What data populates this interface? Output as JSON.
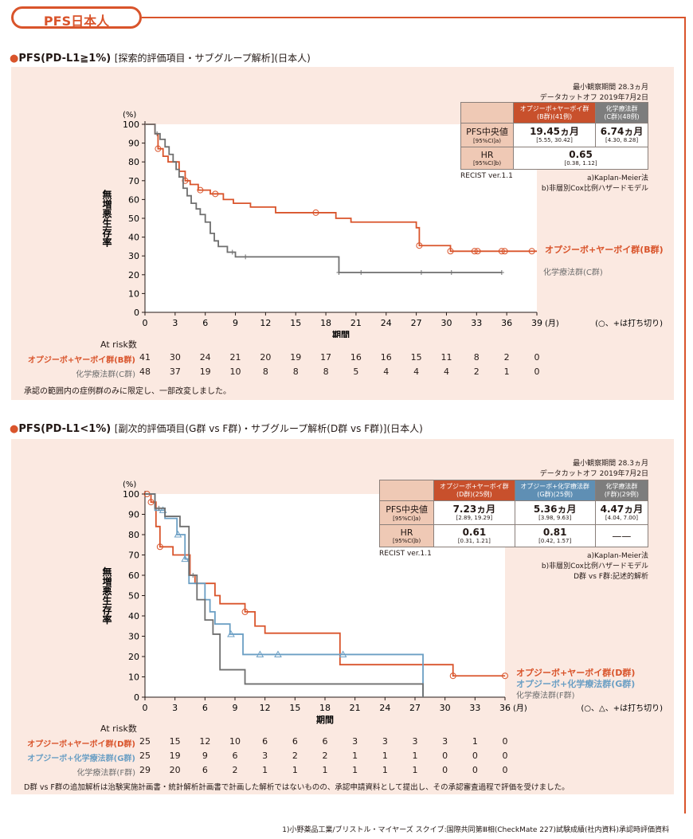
{
  "header": {
    "tab_label": "PFS日本人"
  },
  "colors": {
    "accent": "#d9542b",
    "red": "#d9542b",
    "gray": "#6f6f6f",
    "blue": "#6b9fc4",
    "panel": "#fbe9e1"
  },
  "section1": {
    "title_main": "PFS(PD-L1≧1%)",
    "title_sub": "[探索的評価項目・サブグループ解析](日本人)",
    "note_min_obs": "最小観察期間 28.3ヵ月",
    "note_cutoff": "データカットオフ 2019年7月2日",
    "table": {
      "col_b": "オプジーボ+ヤーボイ群",
      "col_b2": "(B群)(41例)",
      "col_c": "化学療法群",
      "col_c2": "(C群)(48例)",
      "row1_label": "PFS中央値",
      "row1_sub": "[95%CI]a)",
      "b_median": "19.45ヵ月",
      "b_ci": "[5.55, 30.42]",
      "c_median": "6.74ヵ月",
      "c_ci": "[4.30, 8.28]",
      "row2_label": "HR",
      "row2_sub": "[95%CI]b)",
      "hr": "0.65",
      "hr_ci": "[0.38, 1.12]"
    },
    "recist": "RECIST ver.1.1",
    "footnote_a": "a)Kaplan-Meier法",
    "footnote_b": "b)非層別Cox比例ハザードモデル",
    "ylabel": "無増悪生存率",
    "yunit": "(%)",
    "xlabel": "期間",
    "xunit": "(月)",
    "censor_note": "(○、+は打ち切り)",
    "legend_b": "オプジーボ+ヤーボイ群(B群)",
    "legend_c": "化学療法群(C群)",
    "risk_title": "At risk数",
    "risk_b_label": "オプジーボ+ヤーボイ群(B群)",
    "risk_c_label": "化学療法群(C群)",
    "risk_b": [
      "41",
      "30",
      "24",
      "21",
      "20",
      "19",
      "17",
      "16",
      "16",
      "15",
      "11",
      "8",
      "2",
      "0"
    ],
    "risk_c": [
      "48",
      "37",
      "19",
      "10",
      "8",
      "8",
      "8",
      "5",
      "4",
      "4",
      "4",
      "2",
      "1",
      "0"
    ],
    "approval_note": "承認の範囲内の症例群のみに限定し、一部改変しました。"
  },
  "section2": {
    "title_main": "PFS(PD-L1<1%)",
    "title_sub": "[副次的評価項目(G群 vs F群)・サブグループ解析(D群 vs F群)](日本人)",
    "note_min_obs": "最小観察期間 28.3ヵ月",
    "note_cutoff": "データカットオフ 2019年7月2日",
    "table": {
      "col_d": "オプジーボ+ヤーボイ群",
      "col_d2": "(D群)(25例)",
      "col_g": "オプジーボ+化学療法群",
      "col_g2": "(G群)(25例)",
      "col_f": "化学療法群",
      "col_f2": "(F群)(29例)",
      "row1_label": "PFS中央値",
      "row1_sub": "[95%CI]a)",
      "d_median": "7.23ヵ月",
      "d_ci": "[2.89, 19.29]",
      "g_median": "5.36ヵ月",
      "g_ci": "[3.98, 9.63]",
      "f_median": "4.47ヵ月",
      "f_ci": "[4.04, 7.00]",
      "row2_label": "HR",
      "row2_sub": "[95%CI]b)",
      "d_hr": "0.61",
      "d_hr_ci": "[0.31, 1.21]",
      "g_hr": "0.81",
      "g_hr_ci": "[0.42, 1.57]",
      "f_hr": "——"
    },
    "recist": "RECIST ver.1.1",
    "footnote_a": "a)Kaplan-Meier法",
    "footnote_b": "b)非層別Cox比例ハザードモデル",
    "footnote_c": "D群 vs F群:記述的解析",
    "ylabel": "無増悪生存率",
    "yunit": "(%)",
    "xlabel": "期間",
    "xunit": "(月)",
    "censor_note": "(○、△、+は打ち切り)",
    "legend_d": "オプジーボ+ヤーボイ群(D群)",
    "legend_g": "オプジーボ+化学療法群(G群)",
    "legend_f": "化学療法群(F群)",
    "risk_title": "At risk数",
    "risk_d_label": "オプジーボ+ヤーボイ群(D群)",
    "risk_g_label": "オプジーボ+化学療法群(G群)",
    "risk_f_label": "化学療法群(F群)",
    "risk_d": [
      "25",
      "15",
      "12",
      "10",
      "6",
      "6",
      "6",
      "3",
      "3",
      "3",
      "3",
      "1",
      "0"
    ],
    "risk_g": [
      "25",
      "19",
      "9",
      "6",
      "3",
      "2",
      "2",
      "1",
      "1",
      "1",
      "0",
      "0",
      "0"
    ],
    "risk_f": [
      "29",
      "20",
      "6",
      "2",
      "1",
      "1",
      "1",
      "1",
      "1",
      "1",
      "0",
      "0",
      "0"
    ],
    "approval_note": "D群 vs F群の追加解析は治験実施計画書・統計解析計画書で計画した解析ではないものの、承認申請資料として提出し、その承認審査過程で評価を受けました。"
  },
  "footer": {
    "source": "1)小野薬品工業/ブリストル・マイヤーズ スクイブ:国際共同第Ⅲ相(CheckMate 227)試験成績(社内資料)承認時評価資料"
  },
  "chart_data": [
    {
      "type": "line",
      "title": "PFS(PD-L1≧1%)",
      "xlabel": "期間",
      "ylabel": "無増悪生存率",
      "xlim": [
        0,
        39
      ],
      "ylim": [
        0,
        100
      ],
      "xticks": [
        0,
        3,
        6,
        9,
        12,
        15,
        18,
        21,
        24,
        27,
        30,
        33,
        36,
        39
      ],
      "yticks": [
        0,
        10,
        20,
        30,
        40,
        50,
        60,
        70,
        80,
        90,
        100
      ],
      "series": [
        {
          "name": "オプジーボ+ヤーボイ群(B群)",
          "color": "red",
          "steps": [
            [
              0,
              100
            ],
            [
              1,
              95
            ],
            [
              1.3,
              87
            ],
            [
              1.8,
              83
            ],
            [
              2.3,
              80
            ],
            [
              3.4,
              75
            ],
            [
              4,
              70
            ],
            [
              4.5,
              68
            ],
            [
              5.3,
              65
            ],
            [
              6.5,
              63
            ],
            [
              7.8,
              60
            ],
            [
              8.8,
              58
            ],
            [
              10.5,
              56
            ],
            [
              13,
              53
            ],
            [
              19,
              50
            ],
            [
              20.5,
              48
            ],
            [
              27,
              45
            ],
            [
              27.3,
              35.5
            ],
            [
              30.4,
              32.5
            ],
            [
              39,
              32.5
            ]
          ],
          "censors": [
            1.3,
            4,
            5.5,
            7,
            17,
            27.3,
            30.4,
            32.8,
            33.1,
            35.5,
            35.8,
            38.5
          ]
        },
        {
          "name": "化学療法群(C群)",
          "color": "gray",
          "steps": [
            [
              0,
              100
            ],
            [
              1,
              95
            ],
            [
              1.5,
              92
            ],
            [
              2,
              88
            ],
            [
              2.4,
              84
            ],
            [
              2.8,
              80
            ],
            [
              3.1,
              76
            ],
            [
              3.4,
              72
            ],
            [
              3.8,
              66
            ],
            [
              4.2,
              62
            ],
            [
              4.6,
              58
            ],
            [
              5.1,
              55
            ],
            [
              5.5,
              52
            ],
            [
              6,
              48
            ],
            [
              6.5,
              42
            ],
            [
              6.9,
              38
            ],
            [
              7.3,
              35
            ],
            [
              8.2,
              32
            ],
            [
              9,
              29.5
            ],
            [
              19.3,
              21.2
            ],
            [
              35.5,
              21.2
            ]
          ],
          "censors": [
            1.2,
            8.7,
            10,
            19.3,
            21.5,
            27.5,
            30.5,
            35.5
          ]
        }
      ]
    },
    {
      "type": "line",
      "title": "PFS(PD-L1<1%)",
      "xlabel": "期間",
      "ylabel": "無増悪生存率",
      "xlim": [
        0,
        36
      ],
      "ylim": [
        0,
        100
      ],
      "xticks": [
        0,
        3,
        6,
        9,
        12,
        15,
        18,
        21,
        24,
        27,
        30,
        33,
        36
      ],
      "yticks": [
        0,
        10,
        20,
        30,
        40,
        50,
        60,
        70,
        80,
        90,
        100
      ],
      "series": [
        {
          "name": "オプジーボ+ヤーボイ群(D群)",
          "color": "red",
          "steps": [
            [
              0,
              100
            ],
            [
              0.6,
              96
            ],
            [
              1.1,
              84
            ],
            [
              1.5,
              74
            ],
            [
              2.8,
              70
            ],
            [
              4.5,
              60
            ],
            [
              5,
              56
            ],
            [
              7,
              50
            ],
            [
              7.5,
              46
            ],
            [
              10,
              42
            ],
            [
              11,
              35
            ],
            [
              12,
              31.5
            ],
            [
              19.5,
              16
            ],
            [
              30.8,
              10.5
            ],
            [
              36,
              10.5
            ]
          ],
          "censors": [
            0.2,
            0.6,
            1.5,
            10,
            30.8,
            36
          ]
        },
        {
          "name": "オプジーボ+化学療法群(G群)",
          "color": "blue",
          "steps": [
            [
              0,
              100
            ],
            [
              1,
              92
            ],
            [
              2,
              88
            ],
            [
              3.2,
              80
            ],
            [
              4,
              68
            ],
            [
              4.4,
              56
            ],
            [
              6,
              48
            ],
            [
              6.5,
              42
            ],
            [
              7,
              36
            ],
            [
              8.5,
              31
            ],
            [
              9.8,
              21
            ],
            [
              27.8,
              21
            ],
            [
              27.8,
              0
            ]
          ],
          "censors": [
            1.8,
            3.3,
            4,
            8.6,
            11.5,
            13.3,
            19.8
          ]
        },
        {
          "name": "化学療法群(F群)",
          "color": "gray",
          "steps": [
            [
              0,
              100
            ],
            [
              1,
              93
            ],
            [
              2,
              89
            ],
            [
              3.5,
              84
            ],
            [
              4.4,
              60
            ],
            [
              5.2,
              48
            ],
            [
              6,
              38
            ],
            [
              6.8,
              31
            ],
            [
              7.5,
              13.5
            ],
            [
              10,
              6.5
            ],
            [
              27.8,
              6.5
            ],
            [
              27.8,
              0
            ]
          ],
          "censors": [
            1.4,
            4.8
          ]
        }
      ]
    }
  ]
}
